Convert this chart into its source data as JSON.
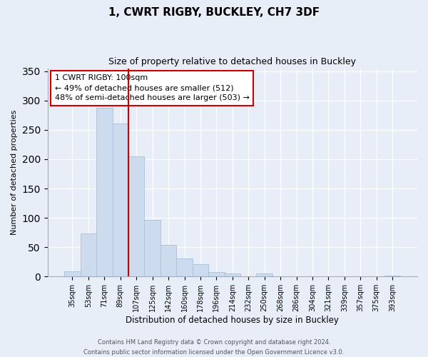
{
  "title": "1, CWRT RIGBY, BUCKLEY, CH7 3DF",
  "subtitle": "Size of property relative to detached houses in Buckley",
  "xlabel": "Distribution of detached houses by size in Buckley",
  "ylabel": "Number of detached properties",
  "bar_labels": [
    "35sqm",
    "53sqm",
    "71sqm",
    "89sqm",
    "107sqm",
    "125sqm",
    "142sqm",
    "160sqm",
    "178sqm",
    "196sqm",
    "214sqm",
    "232sqm",
    "250sqm",
    "268sqm",
    "286sqm",
    "304sqm",
    "321sqm",
    "339sqm",
    "357sqm",
    "375sqm",
    "393sqm"
  ],
  "bar_values": [
    9,
    74,
    287,
    261,
    205,
    97,
    54,
    31,
    21,
    8,
    5,
    0,
    5,
    0,
    0,
    0,
    0,
    0,
    0,
    0,
    2
  ],
  "bar_color": "#ccdcee",
  "bar_edge_color": "#a8c0d8",
  "vline_x_index": 3,
  "vline_color": "#cc0000",
  "ylim": [
    0,
    355
  ],
  "yticks": [
    0,
    50,
    100,
    150,
    200,
    250,
    300,
    350
  ],
  "annotation_title": "1 CWRT RIGBY: 100sqm",
  "annotation_line1": "← 49% of detached houses are smaller (512)",
  "annotation_line2": "48% of semi-detached houses are larger (503) →",
  "annotation_box_color": "#ffffff",
  "annotation_box_edge": "#cc0000",
  "footer_line1": "Contains HM Land Registry data © Crown copyright and database right 2024.",
  "footer_line2": "Contains public sector information licensed under the Open Government Licence v3.0.",
  "background_color": "#e8eef8"
}
